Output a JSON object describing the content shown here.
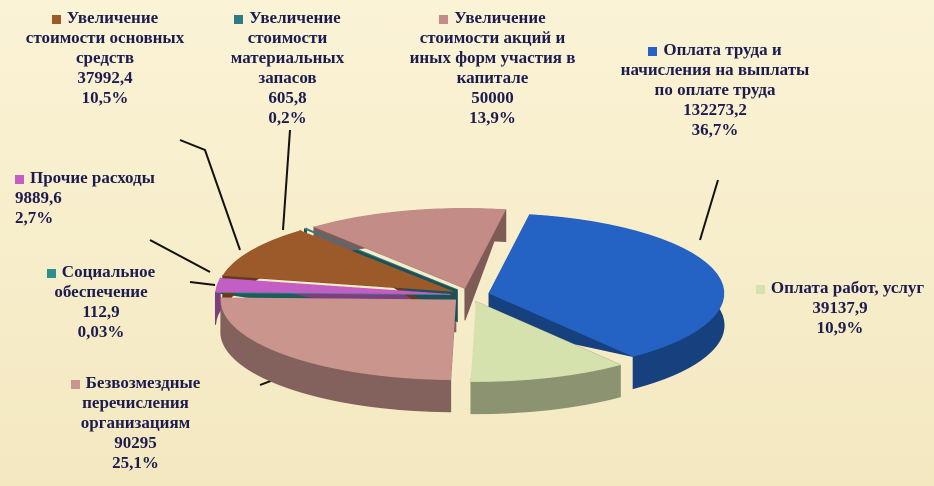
{
  "chart_data": {
    "type": "pie",
    "categories": [
      "Увеличение стоимости основных средств",
      "Увеличение стоимости материальных запасов",
      "Увеличение стоимости акций и иных форм участия в капитале",
      "Оплата труда и начисления на выплаты по оплате труда",
      "Оплата работ, услуг",
      "Безвозмездные перечисления организациям",
      "Социальное обеспечение",
      "Прочие расходы"
    ],
    "values": [
      37992.4,
      605.8,
      50000,
      132273.2,
      39137.9,
      90295,
      112.9,
      9889.6
    ],
    "value_labels": [
      "37992,4",
      "605,8",
      "50000",
      "132273,2",
      "39137,9",
      "90295",
      "112,9",
      "9889,6"
    ],
    "percent_labels": [
      "10,5%",
      "0,2%",
      "13,9%",
      "36,7%",
      "10,9%",
      "25,1%",
      "0,03%",
      "2,7%"
    ],
    "colors": [
      "#9c5a2a",
      "#2e7b86",
      "#c38c86",
      "#2463c4",
      "#d6e2ae",
      "#c9958d",
      "#2b8f8c",
      "#c25ec4"
    ]
  }
}
